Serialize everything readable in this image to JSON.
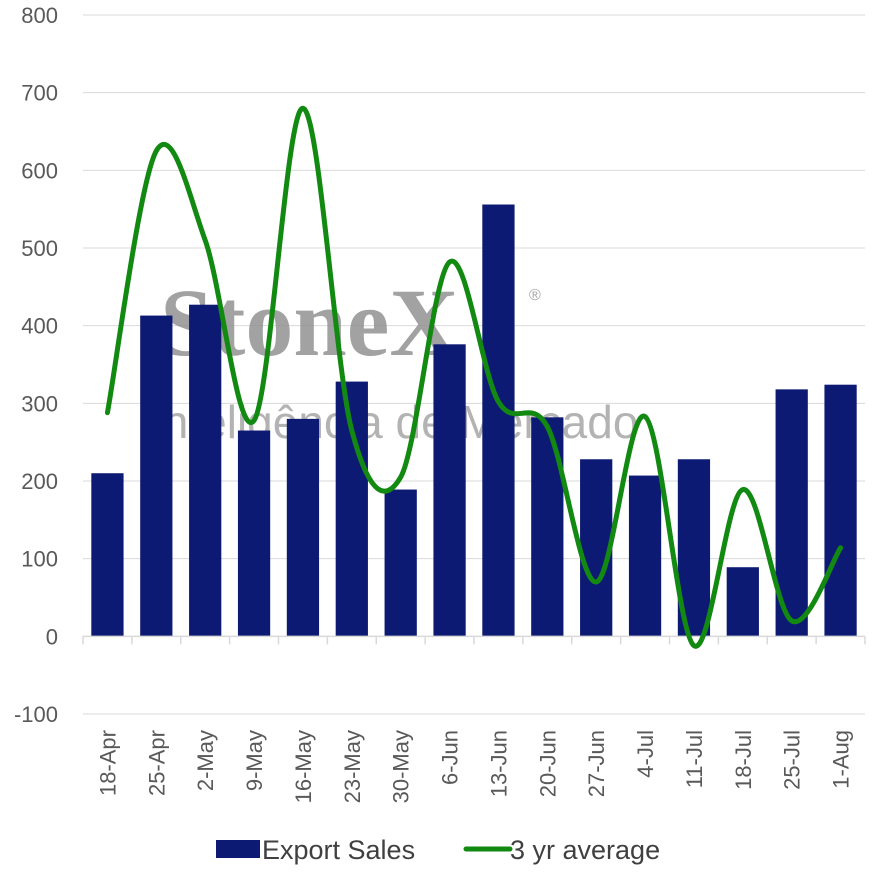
{
  "chart_data": {
    "type": "bar",
    "categories": [
      "18-Apr",
      "25-Apr",
      "2-May",
      "9-May",
      "16-May",
      "23-May",
      "30-May",
      "6-Jun",
      "13-Jun",
      "20-Jun",
      "27-Jun",
      "4-Jul",
      "11-Jul",
      "18-Jul",
      "25-Jul",
      "1-Aug"
    ],
    "series": [
      {
        "name": "Export Sales",
        "type": "bar",
        "color": "#0d1a73",
        "values": [
          210,
          413,
          427,
          265,
          280,
          328,
          189,
          376,
          556,
          282,
          228,
          207,
          228,
          89,
          318,
          324
        ]
      },
      {
        "name": "3 yr average",
        "type": "line",
        "color": "#128a12",
        "values": [
          288,
          625,
          510,
          278,
          680,
          265,
          205,
          482,
          302,
          270,
          70,
          283,
          -12,
          189,
          20,
          114
        ]
      }
    ],
    "ylim": [
      -100,
      800
    ],
    "yticks": [
      -100,
      0,
      100,
      200,
      300,
      400,
      500,
      600,
      700,
      800
    ],
    "grid": true,
    "legend_position": "bottom"
  },
  "watermark": {
    "brand": "StoneX",
    "registered": "®",
    "tagline": "Inteligência de Mercado"
  }
}
